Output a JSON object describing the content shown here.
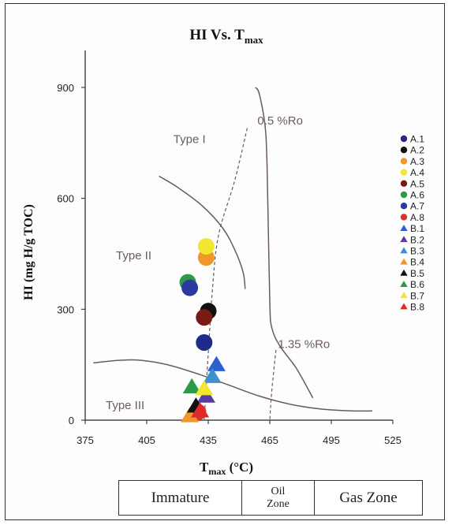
{
  "chart_data": {
    "type": "scatter",
    "title": "HI Vs. T",
    "title_sub": "max",
    "xlabel": "T",
    "xlabel_sub": "max",
    "xlabel_unit": " (°C)",
    "ylabel": "HI (mg H/g TOC)",
    "xlim": [
      375,
      525
    ],
    "ylim": [
      0,
      1000
    ],
    "xticks": [
      "375",
      "405",
      "435",
      "465",
      "495",
      "525"
    ],
    "yticks": [
      "0",
      "300",
      "600",
      "900"
    ],
    "grid": false,
    "legend_position": "right",
    "annotations": [
      {
        "text": "Type I",
        "x": 418,
        "y": 750
      },
      {
        "text": "Type II",
        "x": 390,
        "y": 435
      },
      {
        "text": "Type III",
        "x": 385,
        "y": 30
      },
      {
        "text": "0.5 %Ro",
        "x": 459,
        "y": 800
      },
      {
        "text": "1.35 %Ro",
        "x": 469,
        "y": 195
      }
    ],
    "curves": [
      {
        "name": "type-i-curve",
        "points": [
          [
            458,
            900
          ],
          [
            460,
            880
          ],
          [
            463,
            780
          ],
          [
            464,
            600
          ],
          [
            465,
            320
          ],
          [
            466,
            250
          ],
          [
            470,
            200
          ],
          [
            478,
            140
          ],
          [
            486,
            60
          ]
        ]
      },
      {
        "name": "type-ii-curve",
        "points": [
          [
            411,
            660
          ],
          [
            420,
            630
          ],
          [
            432,
            580
          ],
          [
            442,
            520
          ],
          [
            448,
            460
          ],
          [
            452,
            400
          ],
          [
            453,
            355
          ]
        ]
      },
      {
        "name": "type-iii-curve",
        "points": [
          [
            379,
            155
          ],
          [
            392,
            162
          ],
          [
            402,
            162
          ],
          [
            415,
            150
          ],
          [
            430,
            125
          ],
          [
            445,
            95
          ],
          [
            460,
            65
          ],
          [
            475,
            43
          ],
          [
            490,
            30
          ],
          [
            505,
            25
          ],
          [
            515,
            25
          ]
        ]
      },
      {
        "name": "ro-0-5-line",
        "points": [
          [
            454,
            790
          ],
          [
            448,
            650
          ],
          [
            440,
            500
          ],
          [
            437,
            350
          ],
          [
            435,
            180
          ],
          [
            433,
            0
          ]
        ],
        "dashed": true
      },
      {
        "name": "ro-1-35-line",
        "points": [
          [
            468,
            190
          ],
          [
            466,
            80
          ],
          [
            465,
            0
          ]
        ],
        "dashed": true
      }
    ],
    "series": [
      {
        "name": "A.1",
        "marker": "circle",
        "color": "#1f2a8a",
        "points": [
          [
            433,
            210
          ]
        ]
      },
      {
        "name": "A.2",
        "marker": "circle",
        "color": "#111111",
        "points": [
          [
            435,
            295
          ]
        ]
      },
      {
        "name": "A.3",
        "marker": "circle",
        "color": "#f0962a",
        "points": [
          [
            434,
            440
          ]
        ]
      },
      {
        "name": "A.4",
        "marker": "circle",
        "color": "#f2e630",
        "points": [
          [
            434,
            470
          ]
        ]
      },
      {
        "name": "A.5",
        "marker": "circle",
        "color": "#7a1a14",
        "points": [
          [
            433,
            278
          ]
        ]
      },
      {
        "name": "A.6",
        "marker": "circle",
        "color": "#2c9a48",
        "points": [
          [
            425,
            373
          ]
        ]
      },
      {
        "name": "A.7",
        "marker": "circle",
        "color": "#2b3aa0",
        "points": [
          [
            426,
            358
          ]
        ]
      },
      {
        "name": "A.8",
        "marker": "circle",
        "color": "#d6332b",
        "points": [
          [
            430,
            22
          ]
        ]
      },
      {
        "name": "B.1",
        "marker": "triangle",
        "color": "#2c5fd4",
        "points": [
          [
            439,
            150
          ]
        ]
      },
      {
        "name": "B.2",
        "marker": "triangle",
        "color": "#5a3c9e",
        "points": [
          [
            434,
            65
          ]
        ]
      },
      {
        "name": "B.3",
        "marker": "triangle",
        "color": "#3d8fd0",
        "points": [
          [
            437,
            118
          ]
        ]
      },
      {
        "name": "B.4",
        "marker": "triangle",
        "color": "#f0962a",
        "points": [
          [
            426,
            12
          ]
        ]
      },
      {
        "name": "B.5",
        "marker": "triangle",
        "color": "#111111",
        "points": [
          [
            429,
            38
          ]
        ]
      },
      {
        "name": "B.6",
        "marker": "triangle",
        "color": "#2c9a48",
        "points": [
          [
            427,
            90
          ]
        ]
      },
      {
        "name": "B.7",
        "marker": "triangle",
        "color": "#f2e630",
        "points": [
          [
            433,
            85
          ]
        ]
      },
      {
        "name": "B.8",
        "marker": "triangle",
        "color": "#e02a25",
        "points": [
          [
            431,
            25
          ]
        ]
      }
    ]
  },
  "zones": {
    "immature": "Immature",
    "oil_zone_line1": "Oil",
    "oil_zone_line2": "Zone",
    "gas_zone": "Gas Zone"
  }
}
